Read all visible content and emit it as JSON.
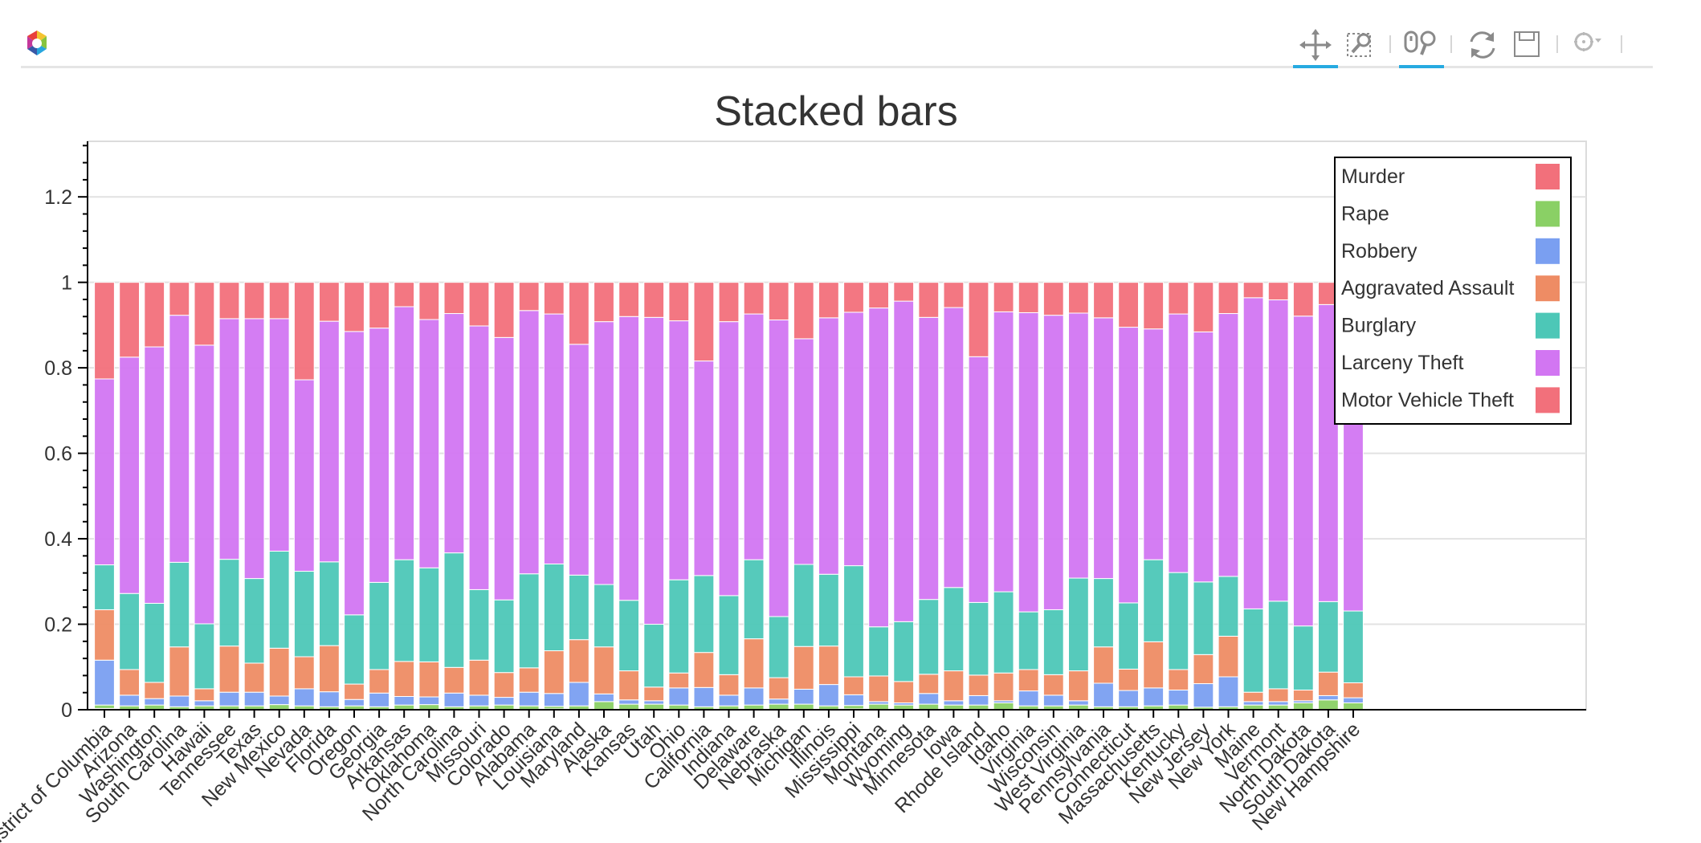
{
  "toolbar": {
    "logo_icon": "bokeh-logo-icon",
    "tools": [
      {
        "name": "pan-tool",
        "icon": "pan-icon",
        "active": true
      },
      {
        "name": "box-zoom-tool",
        "icon": "box-zoom-icon",
        "active": false
      },
      {
        "name": "wheel-zoom-tool",
        "icon": "wheel-zoom-icon",
        "active": true
      },
      {
        "name": "reset-tool",
        "icon": "reset-icon",
        "active": false
      },
      {
        "name": "save-tool",
        "icon": "save-icon",
        "active": false
      },
      {
        "name": "hover-tool",
        "icon": "hover-icon",
        "active": false
      }
    ]
  },
  "chart_data": {
    "type": "bar",
    "stacked": true,
    "title": "Stacked bars",
    "xlabel": "",
    "ylabel": "",
    "ylim": [
      0,
      1.33
    ],
    "yticks": [
      0,
      0.2,
      0.4,
      0.6,
      0.8,
      1,
      1.2
    ],
    "ytick_labels": [
      "0",
      "0.2",
      "0.4",
      "0.6",
      "0.8",
      "1",
      "1.2"
    ],
    "grid": true,
    "legend_position": "top-right",
    "categories": [
      "District of Columbia",
      "Arizona",
      "Washington",
      "South Carolina",
      "Hawaii",
      "Tennessee",
      "Texas",
      "New Mexico",
      "Nevada",
      "Florida",
      "Oregon",
      "Georgia",
      "Arkansas",
      "Oklahoma",
      "North Carolina",
      "Missouri",
      "Colorado",
      "Alabama",
      "Louisiana",
      "Maryland",
      "Alaska",
      "Kansas",
      "Utah",
      "Ohio",
      "California",
      "Indiana",
      "Delaware",
      "Nebraska",
      "Michigan",
      "Illinois",
      "Mississippi",
      "Montana",
      "Wyoming",
      "Minnesota",
      "Iowa",
      "Rhode Island",
      "Idaho",
      "Virginia",
      "Wisconsin",
      "West Virginia",
      "Pennsylvania",
      "Connecticut",
      "Massachusetts",
      "Kentucky",
      "New Jersey",
      "New York",
      "Maine",
      "Vermont",
      "North Dakota",
      "South Dakota",
      "New Hampshire"
    ],
    "series": [
      {
        "name": "Murder",
        "color": "#f2707b",
        "values": [
          0.003,
          0.001,
          0.001,
          0.001,
          0.001,
          0.001,
          0.001,
          0.001,
          0.001,
          0.001,
          0.001,
          0.001,
          0.001,
          0.001,
          0.001,
          0.001,
          0.001,
          0.001,
          0.002,
          0.001,
          0.001,
          0.001,
          0.001,
          0.001,
          0.001,
          0.001,
          0.001,
          0.001,
          0.001,
          0.001,
          0.002,
          0.001,
          0.001,
          0.001,
          0.001,
          0.001,
          0.001,
          0.001,
          0.001,
          0.001,
          0.001,
          0.001,
          0.001,
          0.001,
          0.001,
          0.001,
          0.001,
          0.001,
          0.001,
          0.001,
          0.001
        ]
      },
      {
        "name": "Rape",
        "color": "#8ad065",
        "values": [
          0.008,
          0.008,
          0.01,
          0.006,
          0.008,
          0.008,
          0.008,
          0.011,
          0.008,
          0.006,
          0.008,
          0.006,
          0.01,
          0.011,
          0.006,
          0.008,
          0.01,
          0.008,
          0.006,
          0.008,
          0.018,
          0.012,
          0.012,
          0.01,
          0.006,
          0.008,
          0.01,
          0.012,
          0.012,
          0.008,
          0.008,
          0.012,
          0.01,
          0.012,
          0.01,
          0.01,
          0.015,
          0.008,
          0.008,
          0.01,
          0.006,
          0.006,
          0.008,
          0.01,
          0.005,
          0.006,
          0.01,
          0.01,
          0.015,
          0.022,
          0.015
        ]
      },
      {
        "name": "Robbery",
        "color": "#7a9ff1",
        "values": [
          0.105,
          0.025,
          0.015,
          0.025,
          0.012,
          0.032,
          0.032,
          0.02,
          0.04,
          0.035,
          0.015,
          0.032,
          0.02,
          0.018,
          0.032,
          0.025,
          0.018,
          0.032,
          0.03,
          0.055,
          0.018,
          0.01,
          0.008,
          0.04,
          0.045,
          0.025,
          0.04,
          0.012,
          0.035,
          0.05,
          0.025,
          0.006,
          0.005,
          0.025,
          0.01,
          0.022,
          0.005,
          0.035,
          0.025,
          0.01,
          0.055,
          0.038,
          0.042,
          0.035,
          0.055,
          0.07,
          0.008,
          0.008,
          0.005,
          0.01,
          0.012
        ]
      },
      {
        "name": "Aggravated Assault",
        "color": "#ee8c64",
        "values": [
          0.118,
          0.06,
          0.038,
          0.115,
          0.028,
          0.108,
          0.068,
          0.112,
          0.075,
          0.108,
          0.036,
          0.055,
          0.082,
          0.082,
          0.06,
          0.082,
          0.058,
          0.057,
          0.1,
          0.1,
          0.11,
          0.068,
          0.032,
          0.035,
          0.082,
          0.048,
          0.115,
          0.05,
          0.1,
          0.09,
          0.042,
          0.06,
          0.05,
          0.045,
          0.07,
          0.048,
          0.065,
          0.05,
          0.048,
          0.07,
          0.085,
          0.05,
          0.108,
          0.048,
          0.068,
          0.095,
          0.022,
          0.03,
          0.025,
          0.055,
          0.035
        ]
      },
      {
        "name": "Burglary",
        "color": "#4dc7b7",
        "values": [
          0.105,
          0.178,
          0.185,
          0.198,
          0.152,
          0.203,
          0.198,
          0.227,
          0.2,
          0.196,
          0.162,
          0.204,
          0.238,
          0.22,
          0.268,
          0.165,
          0.17,
          0.22,
          0.203,
          0.151,
          0.146,
          0.165,
          0.147,
          0.218,
          0.18,
          0.185,
          0.185,
          0.143,
          0.192,
          0.168,
          0.26,
          0.115,
          0.14,
          0.175,
          0.195,
          0.17,
          0.19,
          0.135,
          0.152,
          0.217,
          0.16,
          0.155,
          0.192,
          0.227,
          0.17,
          0.14,
          0.195,
          0.205,
          0.15,
          0.165,
          0.168
        ]
      },
      {
        "name": "Larceny Theft",
        "color": "#d276f2",
        "values": [
          0.435,
          0.553,
          0.6,
          0.578,
          0.652,
          0.563,
          0.608,
          0.544,
          0.448,
          0.563,
          0.663,
          0.595,
          0.592,
          0.581,
          0.56,
          0.617,
          0.614,
          0.616,
          0.585,
          0.54,
          0.615,
          0.664,
          0.718,
          0.606,
          0.502,
          0.641,
          0.575,
          0.694,
          0.528,
          0.6,
          0.593,
          0.746,
          0.75,
          0.66,
          0.655,
          0.575,
          0.655,
          0.7,
          0.689,
          0.62,
          0.61,
          0.645,
          0.54,
          0.605,
          0.585,
          0.615,
          0.728,
          0.705,
          0.725,
          0.695,
          0.715
        ]
      },
      {
        "name": "Motor Vehicle Theft",
        "color": "#f2707b",
        "values": [
          0.226,
          0.175,
          0.151,
          0.077,
          0.147,
          0.085,
          0.085,
          0.085,
          0.228,
          0.091,
          0.115,
          0.107,
          0.057,
          0.087,
          0.073,
          0.102,
          0.129,
          0.066,
          0.074,
          0.145,
          0.092,
          0.08,
          0.082,
          0.09,
          0.184,
          0.092,
          0.074,
          0.088,
          0.132,
          0.083,
          0.07,
          0.06,
          0.044,
          0.082,
          0.059,
          0.174,
          0.069,
          0.071,
          0.077,
          0.072,
          0.083,
          0.105,
          0.109,
          0.074,
          0.116,
          0.073,
          0.036,
          0.041,
          0.079,
          0.052,
          0.054
        ]
      }
    ]
  }
}
